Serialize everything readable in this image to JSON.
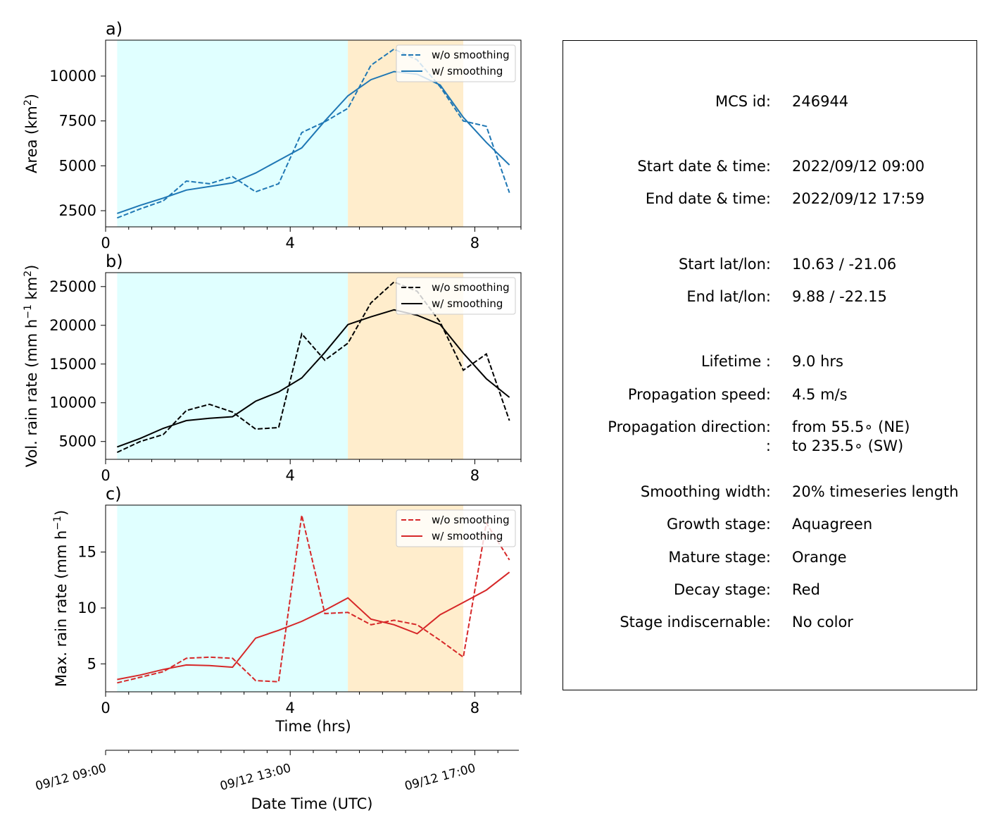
{
  "chart_data": [
    {
      "panel_label": "a)",
      "type": "line",
      "ylabel": "Area  (km²)",
      "xlim": [
        0,
        9
      ],
      "ylim": [
        1600,
        12000
      ],
      "xticks": [
        0,
        4,
        8
      ],
      "yticks": [
        2500,
        5000,
        7500,
        10000
      ],
      "shaded_stages": [
        {
          "stage": "growth",
          "start": 0.25,
          "end": 5.25,
          "color": "#e0ffff"
        },
        {
          "stage": "mature",
          "start": 5.25,
          "end": 7.75,
          "color": "#ffedcc"
        }
      ],
      "legend": {
        "placement": "top-right"
      },
      "series": [
        {
          "name": "w/o smoothing",
          "style": "dashed",
          "color": "#1f77b4",
          "x": [
            0.25,
            0.75,
            1.25,
            1.75,
            2.25,
            2.75,
            3.25,
            3.75,
            4.25,
            4.75,
            5.25,
            5.75,
            6.25,
            6.75,
            7.25,
            7.75,
            8.25,
            8.75
          ],
          "y": [
            2100,
            2600,
            3050,
            4150,
            4000,
            4400,
            3550,
            4000,
            6850,
            7450,
            8200,
            10600,
            11500,
            10900,
            9400,
            7500,
            7200,
            3500
          ]
        },
        {
          "name": "w/ smoothing",
          "style": "solid",
          "color": "#1f77b4",
          "x": [
            0.25,
            0.75,
            1.25,
            1.75,
            2.25,
            2.75,
            3.25,
            3.75,
            4.25,
            4.75,
            5.25,
            5.75,
            6.25,
            6.75,
            7.25,
            7.75,
            8.25,
            8.75
          ],
          "y": [
            2350,
            2800,
            3200,
            3650,
            3850,
            4050,
            4600,
            5300,
            6000,
            7500,
            8900,
            9800,
            10250,
            10100,
            9500,
            7700,
            6300,
            5050
          ]
        }
      ]
    },
    {
      "panel_label": "b)",
      "type": "line",
      "ylabel": "Vol. rain rate (mm h⁻¹ km²)",
      "xlim": [
        0,
        9
      ],
      "ylim": [
        2700,
        26800
      ],
      "xticks": [
        0,
        4,
        8
      ],
      "yticks": [
        5000,
        10000,
        15000,
        20000,
        25000
      ],
      "shaded_stages": [
        {
          "stage": "growth",
          "start": 0.25,
          "end": 5.25,
          "color": "#e0ffff"
        },
        {
          "stage": "mature",
          "start": 5.25,
          "end": 7.75,
          "color": "#ffedcc"
        }
      ],
      "legend": {
        "placement": "top-right"
      },
      "series": [
        {
          "name": "w/o smoothing",
          "style": "dashed",
          "color": "#000000",
          "x": [
            0.25,
            0.75,
            1.25,
            1.75,
            2.25,
            2.75,
            3.25,
            3.75,
            4.25,
            4.75,
            5.25,
            5.75,
            6.25,
            6.75,
            7.25,
            7.75,
            8.25,
            8.75
          ],
          "y": [
            3600,
            5000,
            5900,
            9000,
            9800,
            8800,
            6600,
            6800,
            18900,
            15500,
            17700,
            22900,
            25600,
            24400,
            20400,
            14200,
            16300,
            7700
          ]
        },
        {
          "name": "w/ smoothing",
          "style": "solid",
          "color": "#000000",
          "x": [
            0.25,
            0.75,
            1.25,
            1.75,
            2.25,
            2.75,
            3.25,
            3.75,
            4.25,
            4.75,
            5.25,
            5.75,
            6.25,
            6.75,
            7.25,
            7.75,
            8.25,
            8.75
          ],
          "y": [
            4300,
            5400,
            6700,
            7700,
            8000,
            8200,
            10200,
            11400,
            13200,
            16500,
            20100,
            21100,
            22000,
            21300,
            20100,
            16400,
            13100,
            10700
          ]
        }
      ]
    },
    {
      "panel_label": "c)",
      "type": "line",
      "ylabel": "Max. rain rate  (mm h⁻¹)",
      "xlabel": "Time (hrs)",
      "xlim": [
        0,
        9
      ],
      "ylim": [
        2.5,
        19.2
      ],
      "xticks": [
        0,
        4,
        8
      ],
      "yticks": [
        5,
        10,
        15
      ],
      "shaded_stages": [
        {
          "stage": "growth",
          "start": 0.25,
          "end": 5.25,
          "color": "#e0ffff"
        },
        {
          "stage": "mature",
          "start": 5.25,
          "end": 7.75,
          "color": "#ffedcc"
        }
      ],
      "legend": {
        "placement": "top-right"
      },
      "series": [
        {
          "name": "w/o smoothing",
          "style": "dashed",
          "color": "#d62728",
          "x": [
            0.25,
            0.75,
            1.25,
            1.75,
            2.25,
            2.75,
            3.25,
            3.75,
            4.25,
            4.75,
            5.25,
            5.75,
            6.25,
            6.75,
            7.25,
            7.75,
            8.25,
            8.75
          ],
          "y": [
            3.3,
            3.8,
            4.3,
            5.5,
            5.6,
            5.5,
            3.5,
            3.4,
            18.3,
            9.5,
            9.6,
            8.5,
            8.9,
            8.5,
            7.1,
            5.6,
            17.6,
            14.3
          ]
        },
        {
          "name": "w/ smoothing",
          "style": "solid",
          "color": "#d62728",
          "x": [
            0.25,
            0.75,
            1.25,
            1.75,
            2.25,
            2.75,
            3.25,
            3.75,
            4.25,
            4.75,
            5.25,
            5.75,
            6.25,
            6.75,
            7.25,
            7.75,
            8.25,
            8.75
          ],
          "y": [
            3.6,
            4.0,
            4.5,
            4.9,
            4.85,
            4.7,
            7.3,
            8.0,
            8.8,
            9.8,
            10.9,
            9.0,
            8.5,
            7.7,
            9.4,
            10.5,
            11.6,
            13.2
          ]
        }
      ]
    }
  ],
  "datetime_axis": {
    "label": "Date Time (UTC)",
    "tick_labels": [
      "09/12 09:00",
      "09/12 13:00",
      "09/12 17:00"
    ],
    "tick_positions_hrs": [
      0,
      4,
      8
    ]
  },
  "info": {
    "rows": [
      {
        "key": "MCS id:",
        "value": "246944"
      },
      {
        "key": "Start date & time:",
        "value": "2022/09/12 09:00"
      },
      {
        "key": "End date & time:",
        "value": "2022/09/12 17:59"
      },
      {
        "key": "Start lat/lon:",
        "value": "10.63 / -21.06"
      },
      {
        "key": "End lat/lon:",
        "value": "9.88 / -22.15"
      },
      {
        "key": "Lifetime :",
        "value": "9.0 hrs"
      },
      {
        "key": "Propagation speed:",
        "value": "4.5 m/s"
      },
      {
        "key": "Propagation direction:",
        "value": "from  55.5∘ (NE)"
      },
      {
        "key": ":",
        "value": "to   235.5∘ (SW)"
      },
      {
        "key": "Smoothing width:",
        "value": "20% timeseries length"
      },
      {
        "key": "Growth stage:",
        "value": "Aquagreen"
      },
      {
        "key": "Mature stage:",
        "value": "Orange"
      },
      {
        "key": "Decay stage:",
        "value": "Red"
      },
      {
        "key": "Stage indiscernable:",
        "value": "No color"
      }
    ]
  }
}
